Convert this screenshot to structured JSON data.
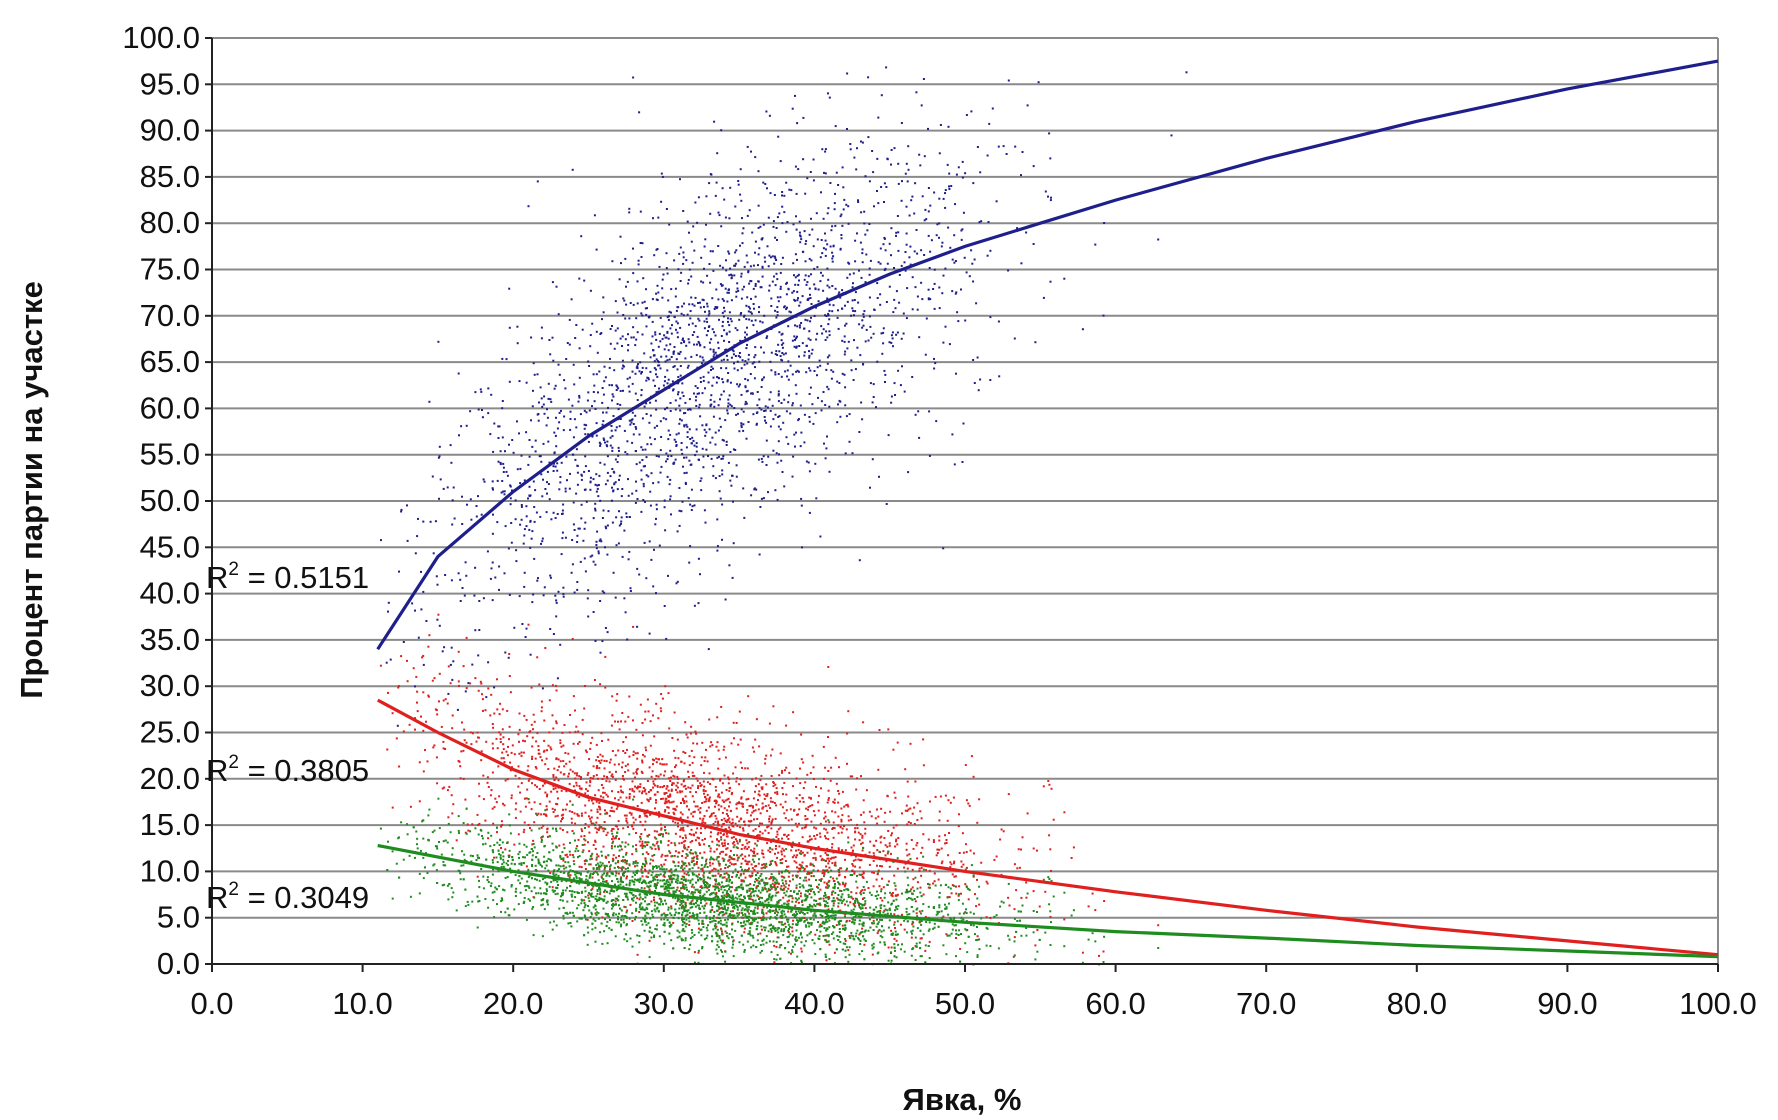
{
  "chart_data": {
    "type": "scatter",
    "title": "",
    "xlabel": "Явка, %",
    "ylabel": "Процент партии на участке",
    "xlim": [
      0,
      100
    ],
    "ylim": [
      0,
      100
    ],
    "x_ticks": [
      "0.0",
      "10.0",
      "20.0",
      "30.0",
      "40.0",
      "50.0",
      "60.0",
      "70.0",
      "80.0",
      "90.0",
      "100.0"
    ],
    "y_ticks": [
      "0.0",
      "5.0",
      "10.0",
      "15.0",
      "20.0",
      "25.0",
      "30.0",
      "35.0",
      "40.0",
      "45.0",
      "50.0",
      "55.0",
      "60.0",
      "65.0",
      "70.0",
      "75.0",
      "80.0",
      "85.0",
      "90.0",
      "95.0",
      "100.0"
    ],
    "grid": "horizontal",
    "legend": "none",
    "series": [
      {
        "color": "#1f1f8c",
        "trend": "logarithmic",
        "trend_points": [
          [
            11,
            34
          ],
          [
            15,
            44
          ],
          [
            20,
            51
          ],
          [
            25,
            57
          ],
          [
            30,
            62
          ],
          [
            35,
            67
          ],
          [
            40,
            71
          ],
          [
            45,
            74.5
          ],
          [
            50,
            77.5
          ],
          [
            55,
            80
          ],
          [
            60,
            82.5
          ],
          [
            70,
            87
          ],
          [
            80,
            91
          ],
          [
            90,
            94.5
          ],
          [
            100,
            97.5
          ]
        ],
        "cloud_center": [
          33,
          67
        ],
        "r2_label": "R",
        "r2_sup": "2",
        "r2_value": " = 0.5151"
      },
      {
        "color": "#e01f1f",
        "trend": "logarithmic",
        "trend_points": [
          [
            11,
            28.5
          ],
          [
            15,
            25
          ],
          [
            20,
            21
          ],
          [
            25,
            18
          ],
          [
            30,
            16
          ],
          [
            35,
            14
          ],
          [
            40,
            12.5
          ],
          [
            50,
            10
          ],
          [
            60,
            7.8
          ],
          [
            70,
            5.8
          ],
          [
            80,
            4
          ],
          [
            90,
            2.5
          ],
          [
            100,
            1
          ]
        ],
        "cloud_center": [
          33,
          15
        ],
        "r2_label": "R",
        "r2_sup": "2",
        "r2_value": " = 0.3805"
      },
      {
        "color": "#1f8c1f",
        "trend": "logarithmic",
        "trend_points": [
          [
            11,
            12.8
          ],
          [
            20,
            10
          ],
          [
            30,
            7.5
          ],
          [
            40,
            5.8
          ],
          [
            50,
            4.5
          ],
          [
            60,
            3.5
          ],
          [
            70,
            2.8
          ],
          [
            80,
            2
          ],
          [
            90,
            1.4
          ],
          [
            100,
            0.8
          ]
        ],
        "cloud_center": [
          33,
          6.5
        ],
        "r2_label": "R",
        "r2_sup": "2",
        "r2_value": " = 0.3049"
      }
    ]
  }
}
